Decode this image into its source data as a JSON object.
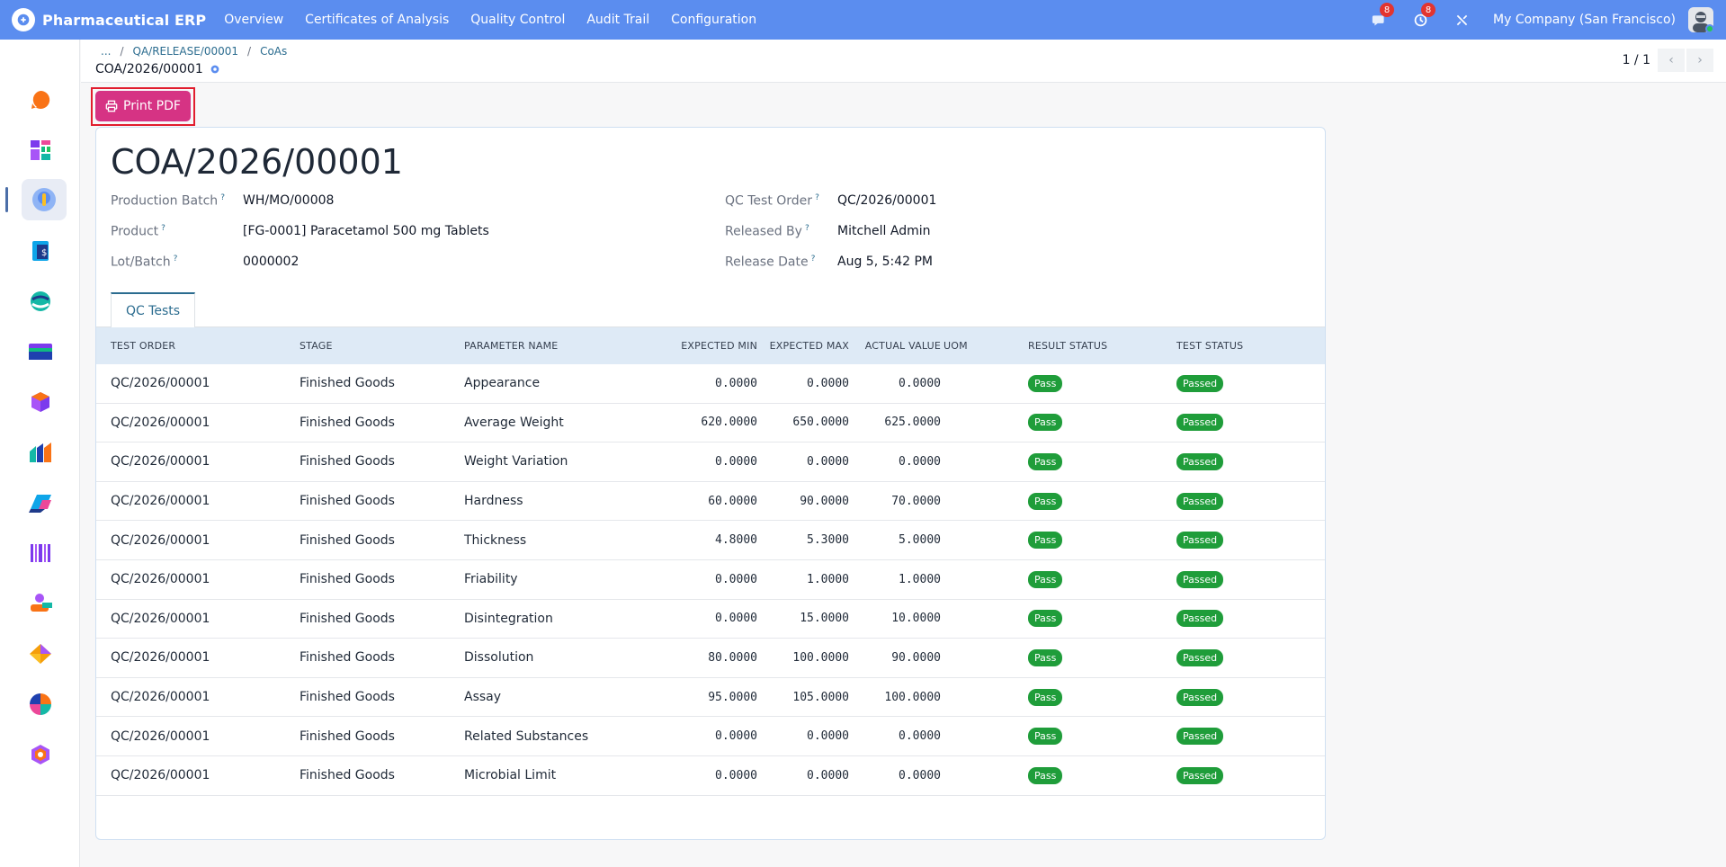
{
  "navbar": {
    "app_name": "Pharmaceutical ERP",
    "menu": [
      "Overview",
      "Certificates of Analysis",
      "Quality Control",
      "Audit Trail",
      "Configuration"
    ],
    "messages_count": "8",
    "activities_count": "8",
    "company": "My Company (San Francisco)",
    "color": "#5b8def"
  },
  "breadcrumb": {
    "ellipsis": "...",
    "items": [
      "QA/RELEASE/00001",
      "CoAs"
    ],
    "separator": "/",
    "current": "COA/2026/00001"
  },
  "pager": {
    "text": "1 / 1"
  },
  "actions": {
    "print_label": "Print PDF",
    "print_color": "#d63384"
  },
  "record": {
    "title": "COA/2026/00001",
    "left_fields": [
      {
        "label": "Production Batch",
        "help": "?",
        "value": "WH/MO/00008"
      },
      {
        "label": "Product",
        "help": "?",
        "value": "[FG-0001] Paracetamol 500 mg Tablets"
      },
      {
        "label": "Lot/Batch",
        "help": "?",
        "value": "0000002"
      }
    ],
    "right_fields": [
      {
        "label": "QC Test Order",
        "help": "?",
        "value": "QC/2026/00001"
      },
      {
        "label": "Released By",
        "help": "?",
        "value": "Mitchell Admin"
      },
      {
        "label": "Release Date",
        "help": "?",
        "value": "Aug 5, 5:42 PM"
      }
    ]
  },
  "tabs": [
    "QC Tests"
  ],
  "table": {
    "headers": [
      "TEST ORDER",
      "STAGE",
      "PARAMETER NAME",
      "EXPECTED MIN",
      "EXPECTED MAX",
      "ACTUAL VALUE",
      "UOM",
      "RESULT STATUS",
      "TEST STATUS"
    ],
    "rows": [
      [
        "QC/2026/00001",
        "Finished Goods",
        "Appearance",
        "0.0000",
        "0.0000",
        "0.0000",
        "",
        "Pass",
        "Passed"
      ],
      [
        "QC/2026/00001",
        "Finished Goods",
        "Average Weight",
        "620.0000",
        "650.0000",
        "625.0000",
        "",
        "Pass",
        "Passed"
      ],
      [
        "QC/2026/00001",
        "Finished Goods",
        "Weight Variation",
        "0.0000",
        "0.0000",
        "0.0000",
        "",
        "Pass",
        "Passed"
      ],
      [
        "QC/2026/00001",
        "Finished Goods",
        "Hardness",
        "60.0000",
        "90.0000",
        "70.0000",
        "",
        "Pass",
        "Passed"
      ],
      [
        "QC/2026/00001",
        "Finished Goods",
        "Thickness",
        "4.8000",
        "5.3000",
        "5.0000",
        "",
        "Pass",
        "Passed"
      ],
      [
        "QC/2026/00001",
        "Finished Goods",
        "Friability",
        "0.0000",
        "1.0000",
        "1.0000",
        "",
        "Pass",
        "Passed"
      ],
      [
        "QC/2026/00001",
        "Finished Goods",
        "Disintegration",
        "0.0000",
        "15.0000",
        "10.0000",
        "",
        "Pass",
        "Passed"
      ],
      [
        "QC/2026/00001",
        "Finished Goods",
        "Dissolution",
        "80.0000",
        "100.0000",
        "90.0000",
        "",
        "Pass",
        "Passed"
      ],
      [
        "QC/2026/00001",
        "Finished Goods",
        "Assay",
        "95.0000",
        "105.0000",
        "100.0000",
        "",
        "Pass",
        "Passed"
      ],
      [
        "QC/2026/00001",
        "Finished Goods",
        "Related Substances",
        "0.0000",
        "0.0000",
        "0.0000",
        "",
        "Pass",
        "Passed"
      ],
      [
        "QC/2026/00001",
        "Finished Goods",
        "Microbial Limit",
        "0.0000",
        "0.0000",
        "0.0000",
        "",
        "Pass",
        "Passed"
      ]
    ],
    "status_color": "#1f9d3a"
  },
  "sidebar_apps": [
    "discuss-app-icon",
    "dashboards-app-icon",
    "pharmaceutical-erp-app-icon",
    "invoicing-app-icon",
    "crm-app-icon",
    "accounting-app-icon",
    "inventory-app-icon",
    "reporting-app-icon",
    "sales-app-icon",
    "barcode-app-icon",
    "employees-app-icon",
    "project-app-icon",
    "apps-app-icon",
    "settings-app-icon"
  ]
}
